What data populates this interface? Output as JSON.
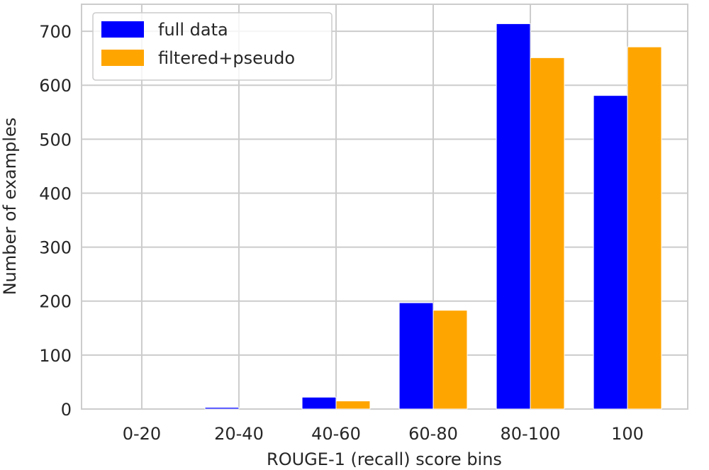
{
  "chart_data": {
    "type": "bar",
    "xlabel": "ROUGE-1 (recall) score bins",
    "ylabel": "Number of examples",
    "categories": [
      "0-20",
      "20-40",
      "40-60",
      "60-80",
      "80-100",
      "100"
    ],
    "series": [
      {
        "name": "full data",
        "color": "#0000ff",
        "values": [
          0,
          3,
          22,
          197,
          714,
          581
        ]
      },
      {
        "name": "filtered+pseudo",
        "color": "#ffa500",
        "values": [
          0,
          0,
          15,
          183,
          651,
          671
        ]
      }
    ],
    "ylim": [
      0,
      750
    ],
    "yticks": [
      0,
      100,
      200,
      300,
      400,
      500,
      600,
      700
    ],
    "grid": true,
    "legend_position": "top-left"
  }
}
